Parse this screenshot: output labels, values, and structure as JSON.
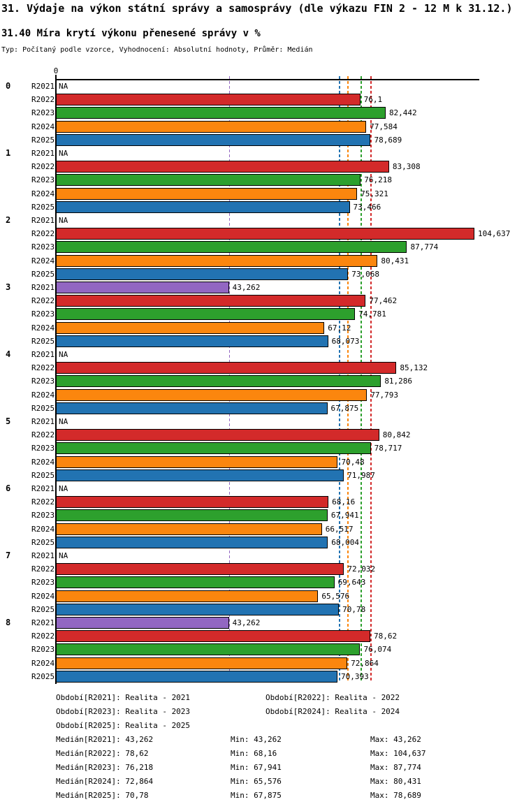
{
  "title": "31. Výdaje na výkon státní správy a samosprávy (dle výkazu FIN 2 - 12 M k 31.12.)",
  "subtitle": "31.40 Míra krytí výkonu přenesené správy v %",
  "type_line": "Typ: Počítaný podle vzorce, Vyhodnocení: Absolutní hodnoty, Průměr: Medián",
  "na_label": "NA",
  "axis": {
    "zero_label": "0"
  },
  "chart_data": {
    "type": "bar",
    "orientation": "horizontal",
    "title": "31.40 Míra krytí výkonu přenesené správy v %",
    "xlabel": "",
    "ylabel": "",
    "xlim": [
      0,
      105.9
    ],
    "grid": false,
    "legend_position": "bottom-text",
    "categories": [
      "0",
      "1",
      "2",
      "3",
      "4",
      "5",
      "6",
      "7",
      "8"
    ],
    "series": [
      {
        "name": "R2021",
        "color": "#9266C2",
        "values": [
          null,
          null,
          null,
          43.262,
          null,
          null,
          null,
          null,
          43.262
        ]
      },
      {
        "name": "R2022",
        "color": "#D32A2A",
        "values": [
          76.1,
          83.308,
          104.637,
          77.462,
          85.132,
          80.842,
          68.16,
          72.032,
          78.62
        ]
      },
      {
        "name": "R2023",
        "color": "#2DA02D",
        "values": [
          82.442,
          76.218,
          87.774,
          74.781,
          81.286,
          78.717,
          67.941,
          69.643,
          76.074
        ]
      },
      {
        "name": "R2024",
        "color": "#FB860E",
        "values": [
          77.584,
          75.321,
          80.431,
          67.12,
          77.793,
          70.48,
          66.517,
          65.576,
          72.864
        ]
      },
      {
        "name": "R2025",
        "color": "#2273B2",
        "values": [
          78.689,
          73.466,
          73.068,
          68.073,
          67.875,
          71.987,
          68.004,
          70.78,
          70.393
        ]
      }
    ],
    "median_lines": [
      {
        "series": "R2021",
        "value": 43.262,
        "color": "#9266C2"
      },
      {
        "series": "R2025",
        "value": 70.78,
        "color": "#2273B2"
      },
      {
        "series": "R2024",
        "value": 72.864,
        "color": "#FB860E"
      },
      {
        "series": "R2023",
        "value": 76.218,
        "color": "#2DA02D"
      },
      {
        "series": "R2022",
        "value": 78.62,
        "color": "#D32A2A"
      }
    ]
  },
  "legend": {
    "periods": [
      [
        "Období[R2021]: Realita - 2021",
        "Období[R2022]: Realita - 2022"
      ],
      [
        "Období[R2023]: Realita - 2023",
        "Období[R2024]: Realita - 2024"
      ],
      [
        "Období[R2025]: Realita - 2025"
      ]
    ],
    "stats": [
      [
        "Medián[R2021]: 43,262",
        "Min: 43,262",
        "Max: 43,262"
      ],
      [
        "Medián[R2022]: 78,62",
        "Min: 68,16",
        "Max: 104,637"
      ],
      [
        "Medián[R2023]: 76,218",
        "Min: 67,941",
        "Max: 87,774"
      ],
      [
        "Medián[R2024]: 72,864",
        "Min: 65,576",
        "Max: 80,431"
      ],
      [
        "Medián[R2025]: 70,78",
        "Min: 67,875",
        "Max: 78,689"
      ]
    ]
  }
}
